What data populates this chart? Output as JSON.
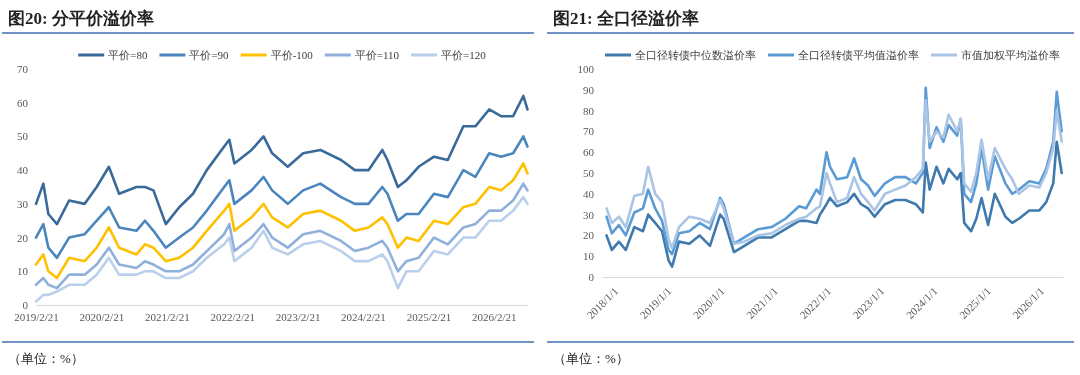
{
  "chart_data": [
    {
      "type": "line",
      "title": "图20: 分平价溢价率",
      "legend": "top",
      "grid": false,
      "marker": "none",
      "line_style": "solid",
      "x": [
        "2019-02-21",
        "2019-04-03",
        "2019-05-01",
        "2019-06-18",
        "2019-08-25",
        "2019-11-20",
        "2020-01-26",
        "2020-04-03",
        "2020-05-30",
        "2020-09-04",
        "2020-10-22",
        "2020-12-08",
        "2021-02-15",
        "2021-05-01",
        "2021-07-17",
        "2021-10-02",
        "2022-01-07",
        "2022-02-05",
        "2022-03-05",
        "2022-06-09",
        "2022-08-15",
        "2022-10-02",
        "2022-12-28",
        "2023-03-24",
        "2023-06-28",
        "2023-10-22",
        "2024-01-07",
        "2024-03-23",
        "2024-06-08",
        "2024-07-07",
        "2024-09-03",
        "2024-10-21",
        "2024-12-28",
        "2025-03-24",
        "2025-06-09",
        "2025-09-04",
        "2025-11-10",
        "2026-01-26",
        "2026-04-03",
        "2026-06-09",
        "2026-08-05",
        "2026-08-28"
      ],
      "xlim": [
        "2019-02-21",
        "2026-08-31"
      ],
      "xticks": [
        {
          "value": "2019-02-21",
          "label": "2019/2/21"
        },
        {
          "value": "2020-02-21",
          "label": "2020/2/21"
        },
        {
          "value": "2021-02-21",
          "label": "2021/2/21"
        },
        {
          "value": "2022-02-21",
          "label": "2022/2/21"
        },
        {
          "value": "2023-02-21",
          "label": "2023/2/21"
        },
        {
          "value": "2024-02-21",
          "label": "2024/2/21"
        },
        {
          "value": "2025-02-21",
          "label": "2025/2/21"
        },
        {
          "value": "2026-02-21",
          "label": "2026/2/21"
        }
      ],
      "ylim": [
        0,
        70
      ],
      "yticks": [
        0,
        10,
        20,
        30,
        40,
        50,
        60,
        70
      ],
      "series": [
        {
          "name": "平价=80",
          "color": "#3a6a9a",
          "values": [
            30,
            36,
            27,
            24,
            31,
            30,
            35,
            41,
            33,
            35,
            35,
            34,
            24,
            29,
            33,
            40,
            47,
            49,
            42,
            46,
            50,
            45,
            41,
            45,
            46,
            43,
            40,
            40,
            46,
            43,
            35,
            37,
            41,
            44,
            43,
            53,
            53,
            58,
            56,
            56,
            62,
            58
          ]
        },
        {
          "name": "平价=90",
          "color": "#4a86be",
          "values": [
            20,
            24,
            17,
            14,
            20,
            21,
            25,
            29,
            23,
            22,
            25,
            22,
            17,
            20,
            23,
            28,
            35,
            37,
            30,
            34,
            38,
            34,
            30,
            34,
            36,
            32,
            30,
            30,
            35,
            33,
            25,
            27,
            27,
            33,
            32,
            40,
            38,
            45,
            44,
            45,
            50,
            47
          ]
        },
        {
          "name": "平价-100",
          "color": "#ffc000",
          "values": [
            12,
            15,
            10,
            8,
            14,
            13,
            17,
            23,
            17,
            15,
            18,
            17,
            13,
            14,
            17,
            22,
            28,
            30,
            22,
            26,
            30,
            26,
            23,
            27,
            28,
            25,
            22,
            23,
            26,
            24,
            17,
            20,
            19,
            25,
            24,
            29,
            30,
            35,
            34,
            37,
            42,
            39
          ]
        },
        {
          "name": "平价=110",
          "color": "#8fb0dc",
          "values": [
            6,
            8,
            6,
            5,
            9,
            9,
            12,
            17,
            12,
            11,
            13,
            12,
            10,
            10,
            12,
            16,
            21,
            24,
            16,
            20,
            24,
            20,
            17,
            21,
            22,
            19,
            16,
            17,
            19,
            17,
            10,
            13,
            14,
            20,
            18,
            23,
            24,
            28,
            28,
            31,
            36,
            34
          ]
        },
        {
          "name": "平价=120",
          "color": "#b9cfeb",
          "values": [
            1,
            3,
            3,
            4,
            6,
            6,
            9,
            14,
            9,
            9,
            10,
            10,
            8,
            8,
            10,
            14,
            18,
            20,
            13,
            17,
            22,
            17,
            15,
            18,
            19,
            16,
            13,
            13,
            15,
            13,
            5,
            10,
            10,
            16,
            15,
            20,
            20,
            25,
            25,
            28,
            32,
            30
          ]
        }
      ],
      "annotations": [
        "（单位：%）"
      ]
    },
    {
      "type": "line",
      "title": "图21: 全口径溢价率",
      "legend": "top",
      "grid": false,
      "marker": "none",
      "line_style": "solid",
      "x": [
        "2018-02-01",
        "2018-03-10",
        "2018-04-27",
        "2018-06-13",
        "2018-08-11",
        "2018-10-09",
        "2018-11-14",
        "2019-01-01",
        "2019-02-17",
        "2019-04-03",
        "2019-04-27",
        "2019-06-13",
        "2019-08-23",
        "2019-11-02",
        "2020-01-12",
        "2020-03-22",
        "2020-04-15",
        "2020-06-25",
        "2020-09-04",
        "2020-12-08",
        "2021-03-10",
        "2021-06-13",
        "2021-09-15",
        "2021-11-02",
        "2022-01-12",
        "2022-02-05",
        "2022-03-22",
        "2022-04-15",
        "2022-06-01",
        "2022-08-11",
        "2022-09-27",
        "2022-11-14",
        "2023-01-01",
        "2023-02-15",
        "2023-04-27",
        "2023-07-06",
        "2023-09-15",
        "2023-11-25",
        "2024-01-12",
        "2024-02-01",
        "2024-02-28",
        "2024-04-15",
        "2024-06-01",
        "2024-07-07",
        "2024-09-04",
        "2024-09-28",
        "2024-10-22",
        "2024-12-08",
        "2025-01-13",
        "2025-02-18",
        "2025-04-04",
        "2025-05-20",
        "2025-08-01",
        "2025-09-16",
        "2025-11-01",
        "2026-01-12",
        "2026-03-22",
        "2026-05-08",
        "2026-06-25",
        "2026-07-19",
        "2026-08-22"
      ],
      "xlim": [
        "2018-01-01",
        "2026-08-31"
      ],
      "xticks": [
        {
          "value": "2018-01-01",
          "label": "2018/1/1"
        },
        {
          "value": "2019-01-01",
          "label": "2019/1/1"
        },
        {
          "value": "2020-01-01",
          "label": "2020/1/1"
        },
        {
          "value": "2021-01-01",
          "label": "2021/1/1"
        },
        {
          "value": "2022-01-01",
          "label": "2022/1/1"
        },
        {
          "value": "2023-01-01",
          "label": "2023/1/1"
        },
        {
          "value": "2024-01-01",
          "label": "2024/1/1"
        },
        {
          "value": "2025-01-01",
          "label": "2025/1/1"
        },
        {
          "value": "2026-01-01",
          "label": "2026/1/1"
        }
      ],
      "ylim": [
        0,
        100
      ],
      "yticks": [
        0,
        10,
        20,
        30,
        40,
        50,
        60,
        70,
        80,
        90,
        100
      ],
      "series": [
        {
          "name": "全口径转债中位数溢价率",
          "color": "#3f79ad",
          "values": [
            20,
            13,
            17,
            13,
            24,
            22,
            30,
            26,
            22,
            8,
            5,
            17,
            16,
            20,
            15,
            30,
            28,
            12,
            15,
            19,
            19,
            23,
            27,
            27,
            26,
            30,
            35,
            38,
            34,
            36,
            40,
            35,
            33,
            29,
            35,
            37,
            37,
            35,
            31,
            55,
            42,
            53,
            45,
            52,
            47,
            50,
            26,
            22,
            28,
            38,
            25,
            40,
            29,
            26,
            28,
            32,
            32,
            36,
            45,
            65,
            50
          ]
        },
        {
          "name": "全口径转债平均值溢价率",
          "color": "#5b9bd5",
          "values": [
            29,
            21,
            25,
            20,
            31,
            33,
            42,
            33,
            27,
            13,
            11,
            21,
            22,
            26,
            23,
            38,
            35,
            16,
            19,
            23,
            24,
            28,
            34,
            33,
            42,
            40,
            60,
            53,
            47,
            48,
            57,
            47,
            44,
            39,
            45,
            48,
            48,
            45,
            50,
            91,
            62,
            72,
            65,
            73,
            68,
            76,
            40,
            36,
            45,
            62,
            42,
            58,
            45,
            40,
            42,
            46,
            45,
            52,
            65,
            89,
            70
          ]
        },
        {
          "name": "市值加权平均溢价率",
          "color": "#a9c4e4",
          "values": [
            33,
            26,
            29,
            24,
            39,
            40,
            53,
            40,
            36,
            18,
            14,
            24,
            29,
            28,
            26,
            37,
            33,
            16,
            17,
            20,
            21,
            25,
            28,
            29,
            33,
            34,
            50,
            45,
            36,
            38,
            48,
            40,
            36,
            32,
            40,
            42,
            44,
            48,
            52,
            85,
            65,
            70,
            67,
            78,
            70,
            76,
            45,
            41,
            50,
            66,
            47,
            62,
            52,
            47,
            40,
            44,
            43,
            50,
            62,
            80,
            65
          ]
        }
      ],
      "annotations": [
        "（单位：%）"
      ]
    }
  ]
}
